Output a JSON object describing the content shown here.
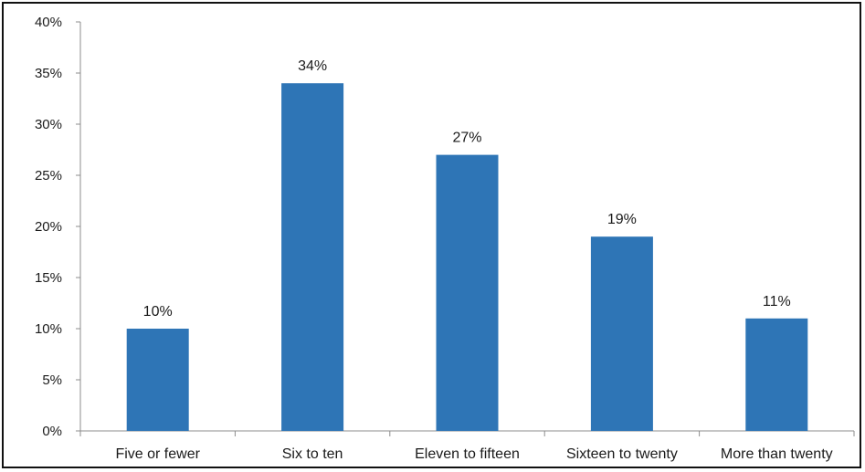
{
  "chart_data": {
    "type": "bar",
    "categories": [
      "Five or fewer",
      "Six to ten",
      "Eleven to fifteen",
      "Sixteen to twenty",
      "More than twenty"
    ],
    "values": [
      10,
      34,
      27,
      19,
      11
    ],
    "data_labels": [
      "10%",
      "34%",
      "27%",
      "19%",
      "11%"
    ],
    "y_ticks": [
      0,
      5,
      10,
      15,
      20,
      25,
      30,
      35,
      40
    ],
    "y_tick_labels": [
      "0%",
      "5%",
      "10%",
      "15%",
      "20%",
      "25%",
      "30%",
      "35%",
      "40%"
    ],
    "ylim": [
      0,
      40
    ],
    "title": "",
    "xlabel": "",
    "ylabel": "",
    "grid": false,
    "legend": "none",
    "bar_color": "#2e75b6"
  }
}
